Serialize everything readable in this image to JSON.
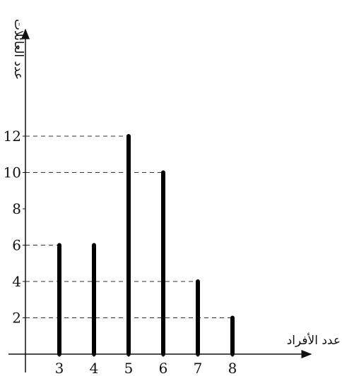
{
  "chart_data": {
    "type": "bar",
    "title": "",
    "xlabel": "عدد الأفراد",
    "ylabel": "عدد العائلات",
    "categories": [
      "3",
      "4",
      "5",
      "6",
      "7",
      "8"
    ],
    "x": [
      3,
      4,
      5,
      6,
      7,
      8
    ],
    "values": [
      6,
      6,
      12,
      10,
      4,
      2
    ],
    "yticks": [
      2,
      4,
      6,
      8,
      10,
      12
    ],
    "ylim": [
      0,
      12
    ],
    "grid": false,
    "reference_lines": "dashed",
    "bar_color": "#000000",
    "axis_color": "#111111",
    "dash_color": "#333333"
  }
}
